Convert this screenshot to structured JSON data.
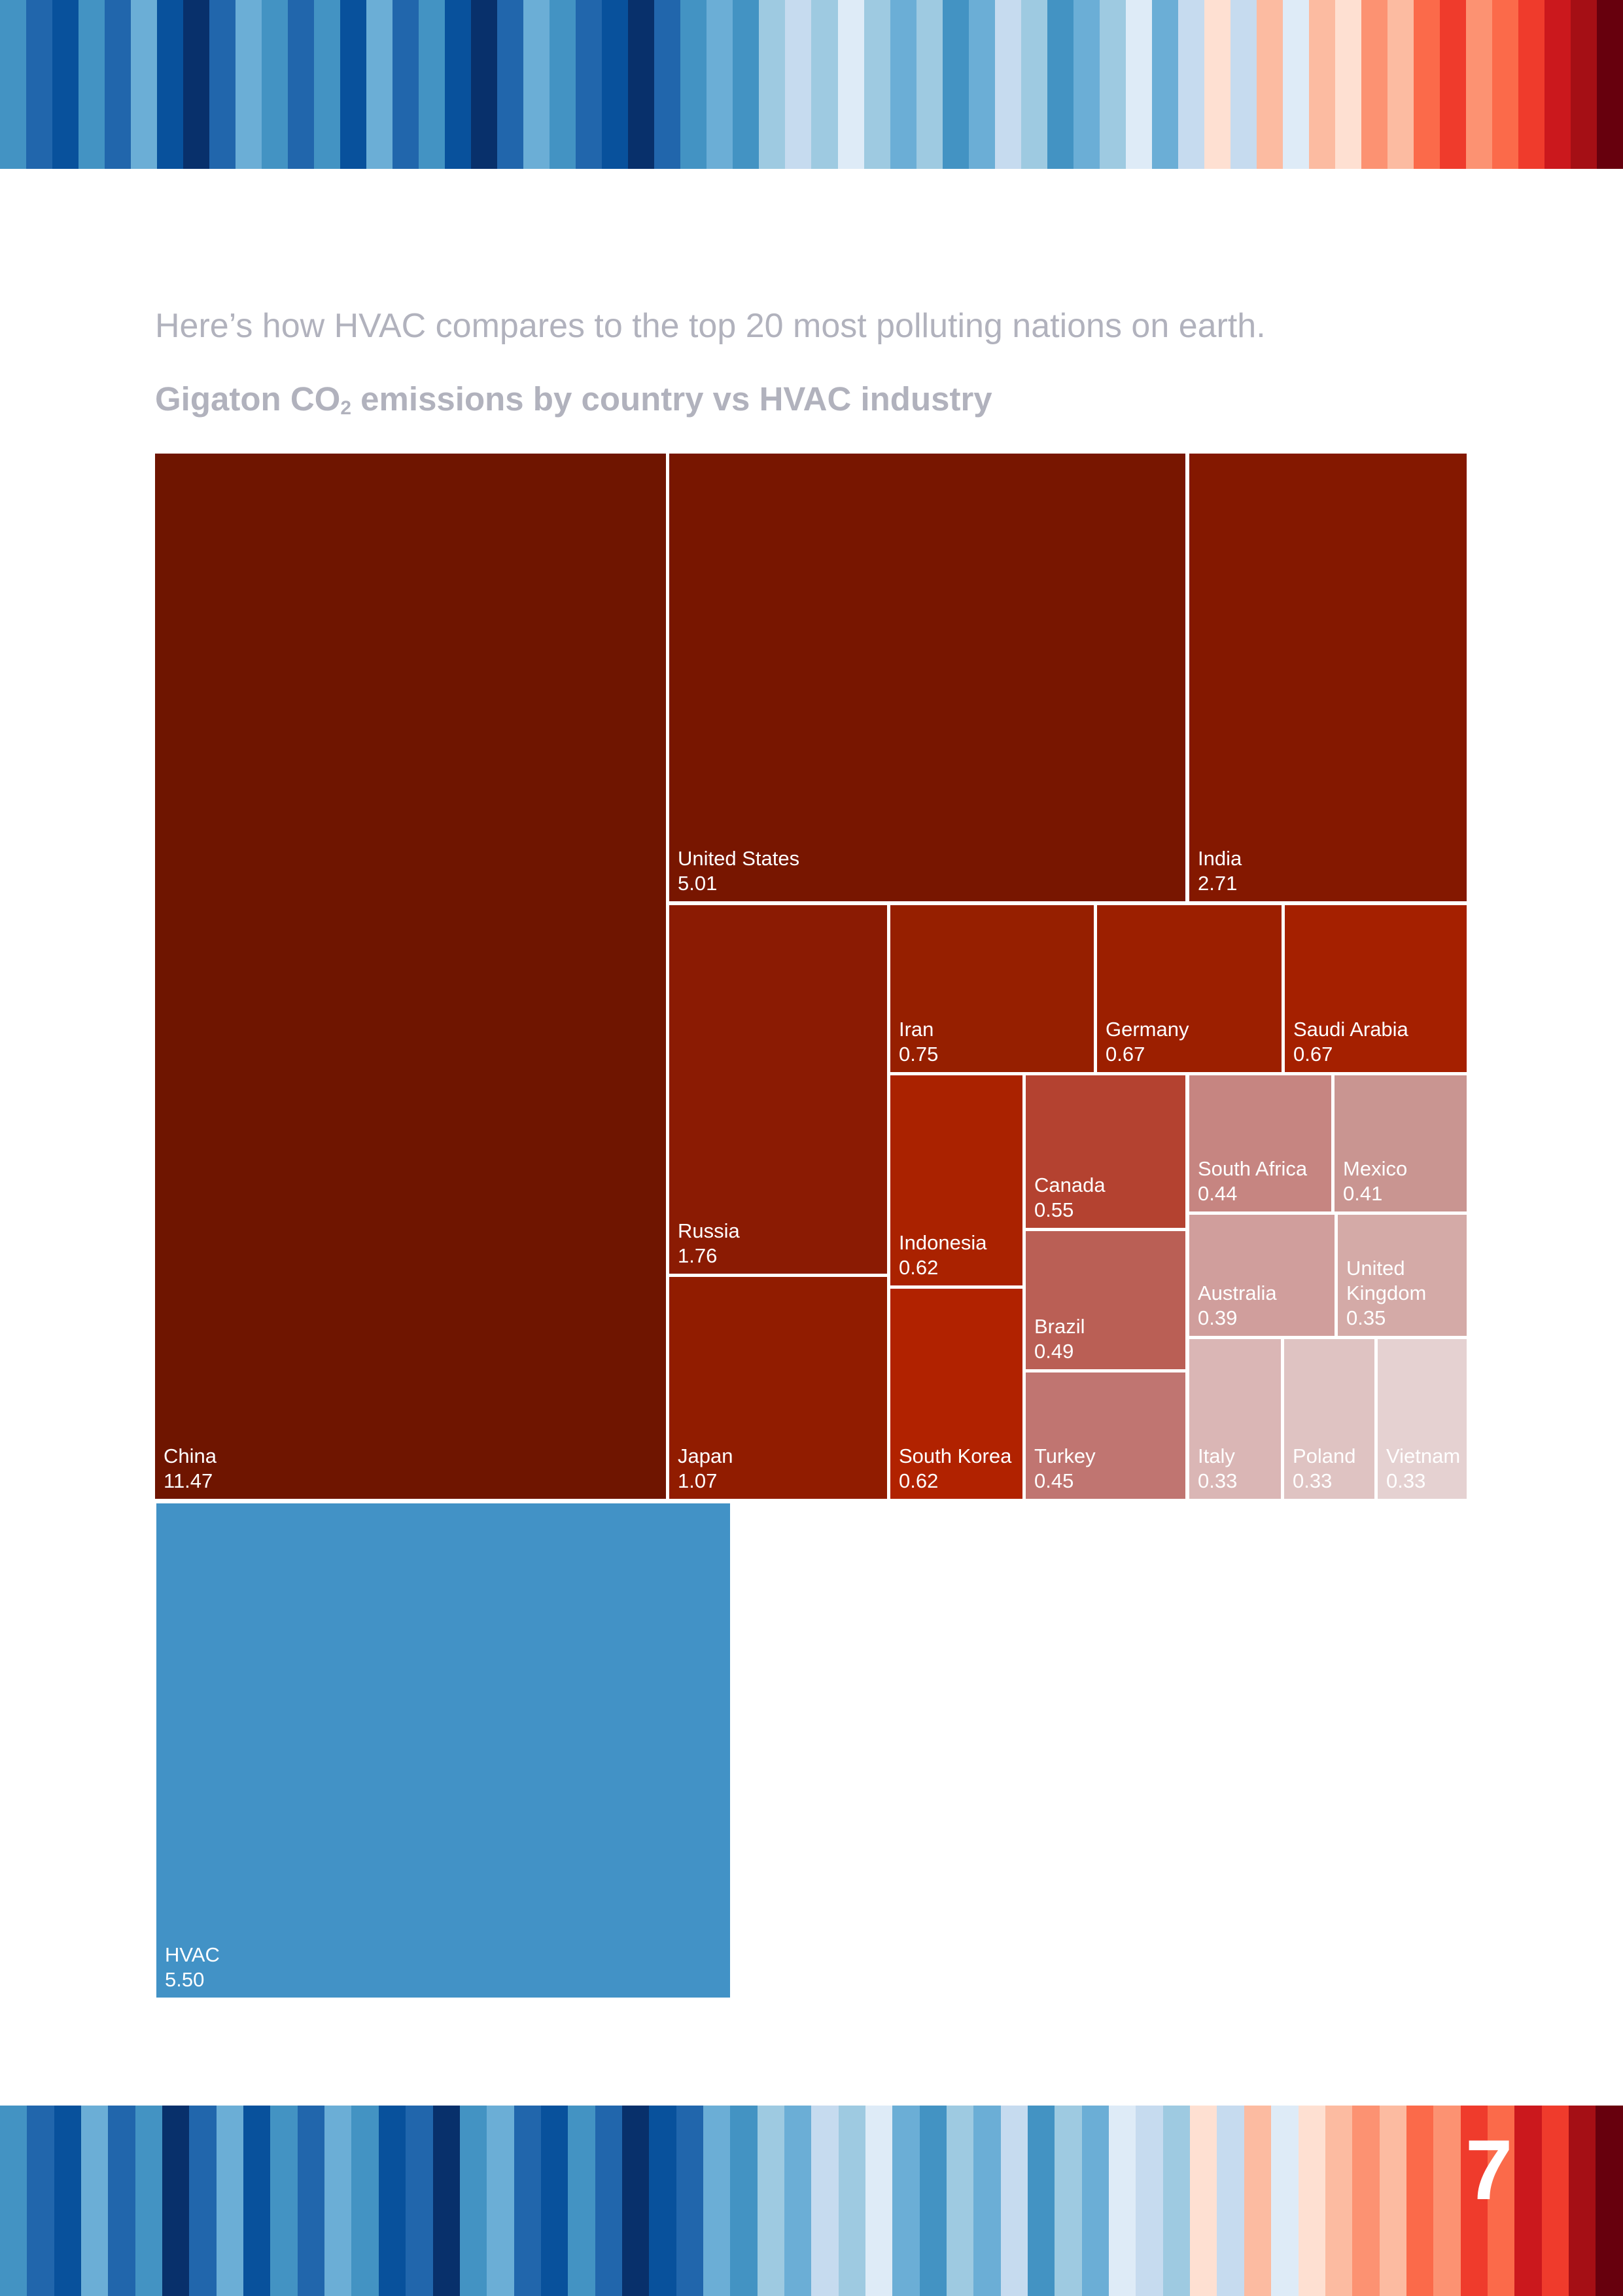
{
  "intro_text": "Here’s how HVAC compares to the top 20 most polluting nations on earth.",
  "chart_data": {
    "type": "treemap",
    "title_parts": {
      "pre": "Gigaton CO",
      "sub": "2",
      "post": " emissions by country vs HVAC industry"
    },
    "unit": "Gigaton CO2",
    "series": [
      {
        "name": "countries",
        "items": [
          {
            "name": "China",
            "value": 11.47,
            "color": "#6f1500",
            "lines": [
              "China"
            ]
          },
          {
            "name": "United States",
            "value": 5.01,
            "color": "#781600",
            "lines": [
              "United States"
            ]
          },
          {
            "name": "India",
            "value": 2.71,
            "color": "#841800",
            "lines": [
              "India"
            ]
          },
          {
            "name": "Russia",
            "value": 1.76,
            "color": "#8b1b03",
            "lines": [
              "Russia"
            ]
          },
          {
            "name": "Japan",
            "value": 1.07,
            "color": "#911c00",
            "lines": [
              "Japan"
            ]
          },
          {
            "name": "Iran",
            "value": 0.75,
            "color": "#961f00",
            "lines": [
              "Iran"
            ]
          },
          {
            "name": "Germany",
            "value": 0.67,
            "color": "#9c1f00",
            "lines": [
              "Germany"
            ]
          },
          {
            "name": "Saudi Arabia",
            "value": 0.67,
            "color": "#a52000",
            "lines": [
              "Saudi Arabia"
            ]
          },
          {
            "name": "Indonesia",
            "value": 0.62,
            "color": "#aa2200",
            "lines": [
              "Indonesia"
            ]
          },
          {
            "name": "South Korea",
            "value": 0.62,
            "color": "#b12200",
            "lines": [
              "South Korea"
            ]
          },
          {
            "name": "Canada",
            "value": 0.55,
            "color": "#b44230",
            "lines": [
              "Canada"
            ]
          },
          {
            "name": "Brazil",
            "value": 0.49,
            "color": "#ba5f55",
            "lines": [
              "Brazil"
            ]
          },
          {
            "name": "Turkey",
            "value": 0.45,
            "color": "#c07571",
            "lines": [
              "Turkey"
            ]
          },
          {
            "name": "South Africa",
            "value": 0.44,
            "color": "#c68581",
            "lines": [
              "South Africa"
            ]
          },
          {
            "name": "Mexico",
            "value": 0.41,
            "color": "#c99591",
            "lines": [
              "Mexico"
            ]
          },
          {
            "name": "Australia",
            "value": 0.39,
            "color": "#d09e9c",
            "lines": [
              "Australia"
            ]
          },
          {
            "name": "United Kingdom",
            "value": 0.35,
            "color": "#d4aaa7",
            "lines": [
              "United",
              "Kingdom"
            ]
          },
          {
            "name": "Italy",
            "value": 0.33,
            "color": "#dab6b5",
            "lines": [
              "Italy"
            ]
          },
          {
            "name": "Poland",
            "value": 0.33,
            "color": "#dfc3c2",
            "lines": [
              "Poland"
            ]
          },
          {
            "name": "Vietnam",
            "value": 0.33,
            "color": "#e5d1d1",
            "lines": [
              "Vietnam"
            ]
          }
        ]
      },
      {
        "name": "industry",
        "items": [
          {
            "name": "HVAC",
            "value": 5.5,
            "color": "#4292c6",
            "lines": [
              "HVAC"
            ]
          }
        ]
      }
    ]
  },
  "warming_stripes": {
    "top": [
      "#4393c3",
      "#2166ac",
      "#08519c",
      "#4393c3",
      "#2166ac",
      "#6baed6",
      "#08519c",
      "#08306b",
      "#2166ac",
      "#6baed6",
      "#4393c3",
      "#2166ac",
      "#4393c3",
      "#08519c",
      "#6baed6",
      "#2166ac",
      "#4393c3",
      "#08519c",
      "#08306b",
      "#2166ac",
      "#6baed6",
      "#4393c3",
      "#2166ac",
      "#08519c",
      "#08306b",
      "#2166ac",
      "#4393c3",
      "#6baed6",
      "#4393c3",
      "#9ecae1",
      "#c6dbef",
      "#9ecae1",
      "#deebf7",
      "#9ecae1",
      "#6baed6",
      "#9ecae1",
      "#4393c3",
      "#6baed6",
      "#c6dbef",
      "#9ecae1",
      "#4393c3",
      "#6baed6",
      "#9ecae1",
      "#deebf7",
      "#6baed6",
      "#c6dbef",
      "#fee0d2",
      "#c6dbef",
      "#fcbba1",
      "#deebf7",
      "#fcbba1",
      "#fee0d2",
      "#fc9272",
      "#fcbba1",
      "#fb6a4a",
      "#ef3b2c",
      "#fc9272",
      "#fb6a4a",
      "#ef3b2c",
      "#cb181d",
      "#a50f15",
      "#67000d"
    ],
    "bottom": [
      "#4393c3",
      "#2166ac",
      "#08519c",
      "#6baed6",
      "#2166ac",
      "#4393c3",
      "#08306b",
      "#2166ac",
      "#6baed6",
      "#08519c",
      "#4393c3",
      "#2166ac",
      "#6baed6",
      "#4393c3",
      "#08519c",
      "#2166ac",
      "#08306b",
      "#4393c3",
      "#6baed6",
      "#2166ac",
      "#08519c",
      "#4393c3",
      "#2166ac",
      "#08306b",
      "#08519c",
      "#2166ac",
      "#6baed6",
      "#4393c3",
      "#9ecae1",
      "#6baed6",
      "#c6dbef",
      "#9ecae1",
      "#deebf7",
      "#6baed6",
      "#4393c3",
      "#9ecae1",
      "#6baed6",
      "#c6dbef",
      "#4393c3",
      "#9ecae1",
      "#6baed6",
      "#deebf7",
      "#c6dbef",
      "#9ecae1",
      "#fee0d2",
      "#c6dbef",
      "#fcbba1",
      "#deebf7",
      "#fee0d2",
      "#fcbba1",
      "#fc9272",
      "#fcbba1",
      "#fb6a4a",
      "#fc9272",
      "#ef3b2c",
      "#fb6a4a",
      "#cb181d",
      "#ef3b2c",
      "#a50f15",
      "#67000d"
    ]
  },
  "page_number": "7"
}
